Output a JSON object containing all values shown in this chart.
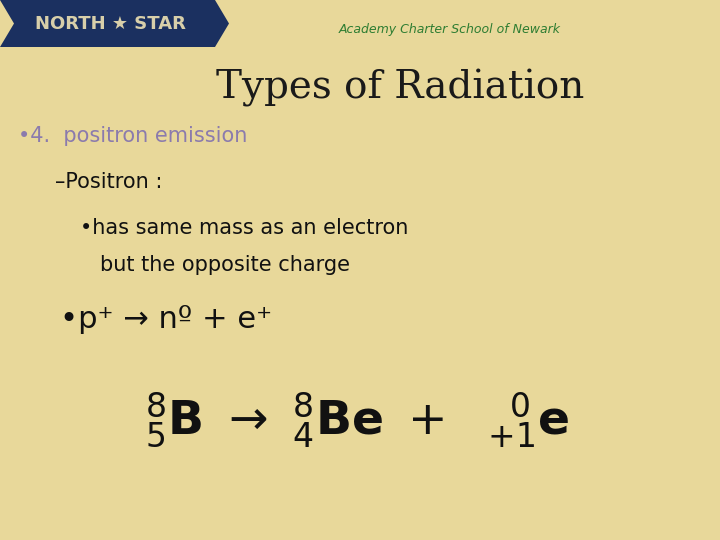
{
  "bg_color": "#E8D89A",
  "title": "Types of Radiation",
  "title_color": "#1a1a1a",
  "title_fontsize": 28,
  "banner_color": "#1B3060",
  "banner_text": "NORTH ★ STAR",
  "banner_text_color": "#D8CFAA",
  "subtitle_color": "#2E7D32",
  "subtitle_text": "Academy Charter School of Newark",
  "bullet1_color": "#8B7BAD",
  "bullet1_text": "•4.  positron emission",
  "dark_color": "#111111",
  "bullet2_text": "–Positron :",
  "bullet3_text": "•has same mass as an electron",
  "bullet3b_text": "but the opposite charge",
  "bullet4_text": "•p⁺ → nº + e⁺"
}
